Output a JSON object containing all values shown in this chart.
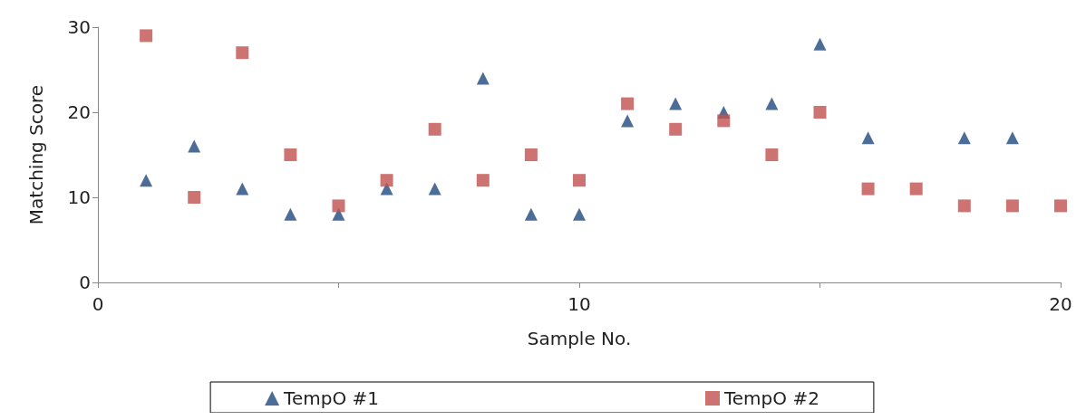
{
  "chart_data": {
    "type": "scatter",
    "xlabel": "Sample No.",
    "ylabel": "Matching Score",
    "x": [
      1,
      2,
      3,
      4,
      5,
      6,
      7,
      8,
      9,
      10,
      11,
      12,
      13,
      14,
      15,
      16,
      17,
      18,
      19,
      20
    ],
    "series": [
      {
        "name": "TempO #1",
        "color": "#1f497d",
        "marker": "triangle",
        "values": [
          12,
          16,
          11,
          8,
          8,
          11,
          11,
          24,
          8,
          8,
          19,
          21,
          20,
          21,
          28,
          17,
          null,
          17,
          17,
          null
        ]
      },
      {
        "name": "TempO #2",
        "color": "#c0504d",
        "marker": "square",
        "values": [
          29,
          10,
          27,
          15,
          9,
          12,
          18,
          12,
          15,
          12,
          21,
          18,
          19,
          15,
          20,
          11,
          11,
          9,
          9,
          9
        ]
      }
    ],
    "xlim": [
      0,
      20
    ],
    "xticks": [
      0,
      {
        "value": 5,
        "label": null
      },
      10,
      {
        "value": 15,
        "label": null
      },
      20
    ],
    "ylim": [
      0,
      30
    ],
    "yticks": [
      0,
      10,
      20,
      30
    ],
    "grid": false,
    "legend": "bottom"
  }
}
